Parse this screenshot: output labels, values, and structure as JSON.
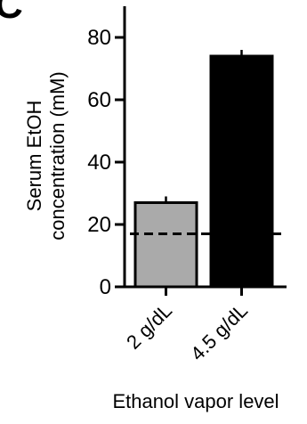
{
  "panel_label": "C",
  "chart_data": {
    "type": "bar",
    "ylabel_lines": [
      "Serum EtOH",
      "concentration (mM)"
    ],
    "xlabel": "Ethanol vapor level",
    "categories": [
      "2 g/dL",
      "4.5 g/dL"
    ],
    "series": [
      {
        "values": [
          27,
          74
        ],
        "errors": [
          2,
          2
        ],
        "colors": [
          "#aaaaaa",
          "#000000"
        ]
      }
    ],
    "ylim": [
      0,
      90
    ],
    "yticks": [
      0,
      20,
      40,
      60,
      80
    ],
    "reference_line": {
      "y": 17,
      "style": "dashed"
    },
    "grid": false
  }
}
